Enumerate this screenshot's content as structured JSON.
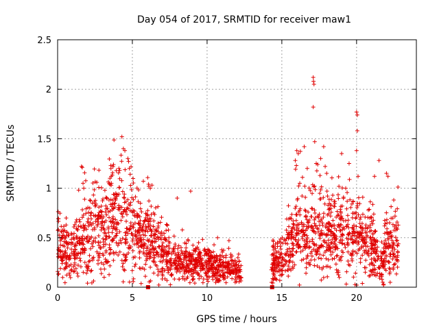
{
  "chart_data": {
    "type": "scatter",
    "title": "Day 054 of 2017, SRMTID for receiver maw1",
    "xlabel": "GPS time / hours",
    "ylabel": "SRMTID / TECUs",
    "xlim": [
      0,
      24
    ],
    "ylim": [
      0,
      2.5
    ],
    "xticks": [
      0,
      5,
      10,
      15,
      20
    ],
    "xtick_labels": [
      "0",
      "5",
      "10",
      "15",
      "20"
    ],
    "yticks": [
      0,
      0.5,
      1,
      1.5,
      2,
      2.5
    ],
    "ytick_labels": [
      "0",
      "0.5",
      "1",
      "1.5",
      "2",
      "2.5"
    ],
    "grid": true,
    "marker_color": "#e00000",
    "series": [
      {
        "name": "SRMTID",
        "marker": "plus",
        "segments": [
          {
            "x_start": 0.0,
            "x_end": 12.3,
            "profile": [
              [
                0,
                0.45
              ],
              [
                0.8,
                0.32
              ],
              [
                2,
                0.55
              ],
              [
                3,
                0.62
              ],
              [
                4.3,
                0.72
              ],
              [
                5.5,
                0.5
              ],
              [
                6.5,
                0.45
              ],
              [
                7.5,
                0.28
              ],
              [
                9,
                0.25
              ],
              [
                10.5,
                0.22
              ],
              [
                12.3,
                0.16
              ]
            ]
          },
          {
            "x_start": 14.3,
            "x_end": 22.8,
            "profile": [
              [
                14.3,
                0.22
              ],
              [
                15,
                0.3
              ],
              [
                16,
                0.55
              ],
              [
                17,
                0.55
              ],
              [
                18,
                0.55
              ],
              [
                19,
                0.55
              ],
              [
                20,
                0.55
              ],
              [
                21,
                0.45
              ],
              [
                21.6,
                0.2
              ],
              [
                22,
                0.45
              ],
              [
                22.8,
                0.45
              ]
            ]
          }
        ],
        "highlights": [
          {
            "x": 1.6,
            "y": 1.22
          },
          {
            "x": 1.65,
            "y": 1.21
          },
          {
            "x": 1.7,
            "y": 1.05
          },
          {
            "x": 1.75,
            "y": 1.0
          },
          {
            "x": 3.5,
            "y": 1.1
          },
          {
            "x": 3.6,
            "y": 1.05
          },
          {
            "x": 4.1,
            "y": 1.2
          },
          {
            "x": 4.15,
            "y": 1.18
          },
          {
            "x": 4.3,
            "y": 1.52
          },
          {
            "x": 4.4,
            "y": 1.4
          },
          {
            "x": 4.5,
            "y": 1.38
          },
          {
            "x": 4.7,
            "y": 1.3
          },
          {
            "x": 4.75,
            "y": 1.27
          },
          {
            "x": 4.8,
            "y": 1.2
          },
          {
            "x": 6.1,
            "y": 1.02
          },
          {
            "x": 6.2,
            "y": 1.0
          },
          {
            "x": 8.0,
            "y": 0.9
          },
          {
            "x": 8.9,
            "y": 0.97
          },
          {
            "x": 10.7,
            "y": 0.5
          },
          {
            "x": 15.9,
            "y": 1.28
          },
          {
            "x": 16.0,
            "y": 1.38
          },
          {
            "x": 16.1,
            "y": 1.35
          },
          {
            "x": 16.2,
            "y": 1.05
          },
          {
            "x": 16.5,
            "y": 1.42
          },
          {
            "x": 16.7,
            "y": 1.2
          },
          {
            "x": 17.1,
            "y": 2.12
          },
          {
            "x": 17.12,
            "y": 2.08
          },
          {
            "x": 17.15,
            "y": 2.05
          },
          {
            "x": 17.1,
            "y": 1.82
          },
          {
            "x": 17.2,
            "y": 1.47
          },
          {
            "x": 17.3,
            "y": 1.25
          },
          {
            "x": 17.4,
            "y": 1.24
          },
          {
            "x": 17.6,
            "y": 1.3
          },
          {
            "x": 17.8,
            "y": 1.42
          },
          {
            "x": 17.9,
            "y": 1.22
          },
          {
            "x": 18.0,
            "y": 1.15
          },
          {
            "x": 19.0,
            "y": 1.35
          },
          {
            "x": 19.5,
            "y": 1.25
          },
          {
            "x": 20.0,
            "y": 1.77
          },
          {
            "x": 20.05,
            "y": 1.74
          },
          {
            "x": 20.05,
            "y": 1.58
          },
          {
            "x": 20.0,
            "y": 1.38
          },
          {
            "x": 20.1,
            "y": 1.12
          },
          {
            "x": 21.2,
            "y": 1.12
          },
          {
            "x": 21.5,
            "y": 1.28
          },
          {
            "x": 22.0,
            "y": 1.15
          },
          {
            "x": 22.1,
            "y": 1.12
          },
          {
            "x": 21.75,
            "y": 0.05
          },
          {
            "x": 21.8,
            "y": 0.03
          },
          {
            "x": 21.7,
            "y": 0.08
          }
        ]
      }
    ],
    "zero_markers": [
      {
        "x": 6.05,
        "y": 0
      },
      {
        "x": 14.35,
        "y": 0
      }
    ]
  }
}
